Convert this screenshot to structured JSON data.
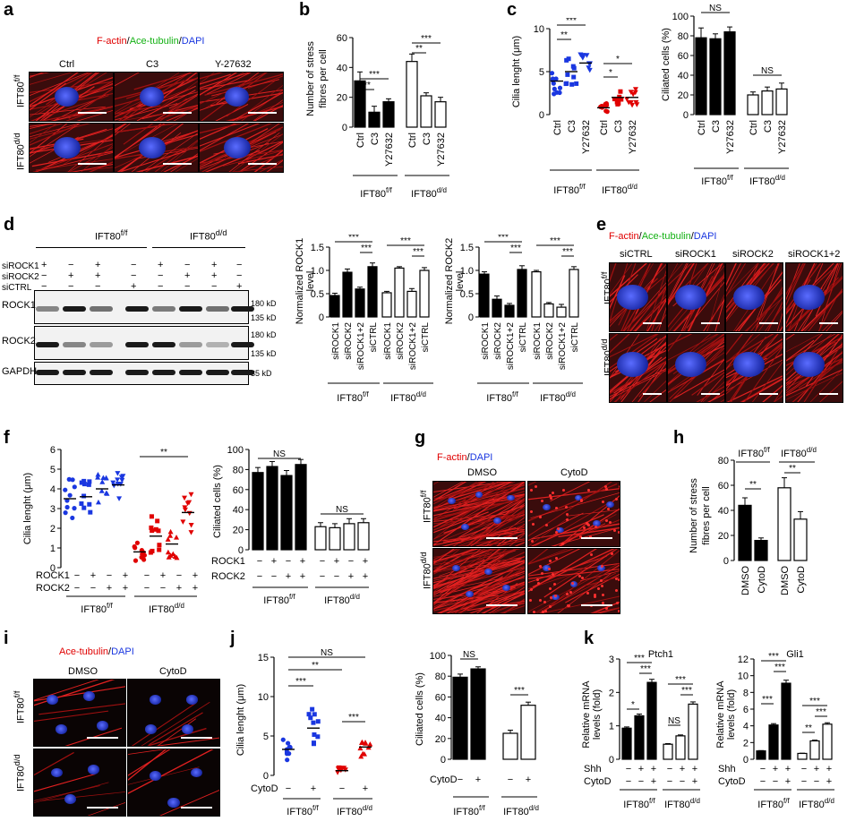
{
  "panels": {
    "a": {
      "letter": "a",
      "stain": {
        "part1": "F-actin",
        "sep1": "/",
        "part2": "Ace-tubulin",
        "sep2": "/",
        "part3": "DAPI"
      },
      "cols": [
        "Ctrl",
        "C3",
        "Y-27632"
      ],
      "row1": "IFT80",
      "row1_sup": "f/f",
      "row2": "IFT80",
      "row2_sup": "d/d"
    },
    "b": {
      "letter": "b",
      "ylabel1": "Number of stress",
      "ylabel2": "fibres per cell",
      "yticks": [
        "0",
        "20",
        "40",
        "60"
      ],
      "xticks": [
        "Ctrl",
        "C3",
        "Y27632",
        "Ctrl",
        "C3",
        "Y27632"
      ],
      "sig": [
        "**",
        "***",
        "**",
        "***"
      ],
      "g1": "IFT80",
      "g1_sup": "f/f",
      "g2": "IFT80",
      "g2_sup": "d/d"
    },
    "c": {
      "letter": "c",
      "ylabel": "Cilia lenght (μm)",
      "ylabel2": "Ciliated cells (%)",
      "yticks": [
        "0",
        "5",
        "10"
      ],
      "yticks2": [
        "0",
        "20",
        "40",
        "60",
        "80",
        "100"
      ],
      "xticks": [
        "Ctrl",
        "C3",
        "Y27632",
        "Ctrl",
        "C3",
        "Y27632"
      ],
      "sig": [
        "*",
        "**",
        "***",
        "*",
        "*"
      ],
      "sig2": [
        "NS",
        "NS"
      ],
      "g1": "IFT80",
      "g1_sup": "f/f",
      "g2": "IFT80",
      "g2_sup": "d/d"
    },
    "d": {
      "letter": "d",
      "g1": "IFT80",
      "g1_sup": "f/f",
      "g2": "IFT80",
      "g2_sup": "d/d",
      "rows": [
        "siROCK1",
        "siROCK2",
        "siCTRL"
      ],
      "signs": [
        [
          "+",
          "−",
          "+",
          "−",
          "+",
          "−",
          "+",
          "−"
        ],
        [
          "−",
          "+",
          "+",
          "−",
          "−",
          "+",
          "+",
          "−"
        ],
        [
          "−",
          "−",
          "−",
          "+",
          "−",
          "−",
          "−",
          "+"
        ]
      ],
      "bands": [
        "ROCK1",
        "ROCK2",
        "GAPDH"
      ],
      "mw": [
        "180 kD",
        "135 kD",
        "180 kD",
        "135 kD",
        "35 kD"
      ],
      "ylabel1": "Normalized ROCK1",
      "ylabel1b": "level",
      "ylabel2": "Normalized ROCK2",
      "ylabel2b": "level",
      "yticks": [
        "0",
        "0.5",
        "1.0",
        "1.5"
      ],
      "xticks": [
        "siROCK1",
        "siROCK2",
        "siROCK1+2",
        "siCTRL",
        "siROCK1",
        "siROCK2",
        "siROCK1+2",
        "siCTRL"
      ],
      "sig": "***"
    },
    "e": {
      "letter": "e",
      "stain": {
        "part1": "F-actin",
        "sep1": "/",
        "part2": "Ace-tubulin",
        "sep2": "/",
        "part3": "DAPI"
      },
      "cols": [
        "siCTRL",
        "siROCK1",
        "siROCK2",
        "siROCK1+2"
      ],
      "row1": "IFT80",
      "row1_sup": "f/f",
      "row2": "IFT80",
      "row2_sup": "d/d"
    },
    "f": {
      "letter": "f",
      "ylabel": "Cilia lenght (μm)",
      "ylabel2": "Ciliated cells (%)",
      "yticks": [
        "0",
        "1",
        "2",
        "3",
        "4",
        "5",
        "6"
      ],
      "yticks2": [
        "0",
        "20",
        "40",
        "60",
        "80",
        "100"
      ],
      "r1": "ROCK1",
      "r2": "ROCK2",
      "r1signs": [
        "−",
        "+",
        "−",
        "+",
        "−",
        "+",
        "−",
        "+"
      ],
      "r2signs": [
        "−",
        "−",
        "+",
        "+",
        "−",
        "−",
        "+",
        "+"
      ],
      "sig": "**",
      "sig2": [
        "NS",
        "NS"
      ],
      "g1": "IFT80",
      "g1_sup": "f/f",
      "g2": "IFT80",
      "g2_sup": "d/d"
    },
    "g": {
      "letter": "g",
      "stain": {
        "part1": "F-actin",
        "sep1": "/",
        "part2": "DAPI"
      },
      "cols": [
        "DMSO",
        "CytoD"
      ],
      "row1": "IFT80",
      "row1_sup": "f/f",
      "row2": "IFT80",
      "row2_sup": "d/d"
    },
    "h": {
      "letter": "h",
      "ylabel1": "Number of stress",
      "ylabel2": "fibres per cell",
      "yticks": [
        "0",
        "20",
        "40",
        "60",
        "80"
      ],
      "xticks": [
        "DMSO",
        "CytoD",
        "DMSO",
        "CytoD"
      ],
      "sig": [
        "**",
        "**"
      ],
      "g1": "IFT80",
      "g1_sup": "f/f",
      "g2": "IFT80",
      "g2_sup": "d/d"
    },
    "i": {
      "letter": "i",
      "stain": {
        "part1": "Ace-tubulin",
        "sep1": "/",
        "part2": "DAPI"
      },
      "cols": [
        "DMSO",
        "CytoD"
      ],
      "row1": "IFT80",
      "row1_sup": "f/f",
      "row2": "IFT80",
      "row2_sup": "d/d"
    },
    "j": {
      "letter": "j",
      "ylabel": "Cilia lenght (μm)",
      "ylabel2": "Ciliated cells (%)",
      "yticks": [
        "0",
        "5",
        "10",
        "15"
      ],
      "yticks2": [
        "0",
        "20",
        "40",
        "60",
        "80",
        "100"
      ],
      "cyto": "CytoD",
      "signs": [
        "−",
        "+",
        "−",
        "+"
      ],
      "sig": [
        "NS",
        "**",
        "***",
        "***"
      ],
      "sig2": [
        "NS",
        "***"
      ],
      "g1": "IFT80",
      "g1_sup": "f/f",
      "g2": "IFT80",
      "g2_sup": "d/d"
    },
    "k": {
      "letter": "k",
      "t1": "Ptch1",
      "t2": "Gli1",
      "ylabel1": "Relative mRNA",
      "ylabel2": "levels (fold)",
      "yticks1": [
        "0",
        "1",
        "2",
        "3"
      ],
      "yticks2": [
        "0",
        "2",
        "4",
        "6",
        "8",
        "10",
        "12"
      ],
      "shh": "Shh",
      "cyto": "CytoD",
      "shhsigns": [
        "−",
        "+",
        "+",
        "−",
        "+",
        "+"
      ],
      "cytosigns": [
        "−",
        "−",
        "+",
        "−",
        "−",
        "+"
      ],
      "sig1": [
        "***",
        "***",
        "*",
        "***",
        "***",
        "NS"
      ],
      "sig2": [
        "***",
        "***",
        "***",
        "***",
        "***",
        "**"
      ],
      "g1": "IFT80",
      "g1_sup": "f/f",
      "g2": "IFT80",
      "g2_sup": "d/d"
    }
  },
  "chart_data": [
    {
      "panel": "b",
      "type": "bar",
      "ylabel": "Number of stress fibres per cell",
      "ylim": [
        0,
        60
      ],
      "categories": [
        "Ctrl",
        "C3",
        "Y27632",
        "Ctrl",
        "C3",
        "Y27632"
      ],
      "series": [
        {
          "name": "IFT80 f/f",
          "values": [
            31,
            10,
            17,
            null,
            null,
            null
          ]
        },
        {
          "name": "IFT80 d/d",
          "values": [
            null,
            null,
            null,
            44,
            21,
            17
          ]
        }
      ]
    },
    {
      "panel": "c-left",
      "type": "scatter",
      "ylabel": "Cilia lenght (μm)",
      "ylim": [
        0,
        10
      ],
      "categories": [
        "Ctrl",
        "C3",
        "Y27632",
        "Ctrl",
        "C3",
        "Y27632"
      ],
      "means": [
        3.9,
        5.0,
        6.0,
        0.8,
        2.0,
        2.0
      ]
    },
    {
      "panel": "c-right",
      "type": "bar",
      "ylabel": "Ciliated cells (%)",
      "ylim": [
        0,
        100
      ],
      "categories": [
        "Ctrl",
        "C3",
        "Y27632",
        "Ctrl",
        "C3",
        "Y27632"
      ],
      "values": [
        78,
        77,
        84,
        20,
        24,
        26
      ]
    },
    {
      "panel": "d-ROCK1",
      "type": "bar",
      "ylabel": "Normalized ROCK1 level",
      "ylim": [
        0,
        1.5
      ],
      "categories": [
        "siROCK1",
        "siROCK2",
        "siROCK1+2",
        "siCTRL",
        "siROCK1",
        "siROCK2",
        "siROCK1+2",
        "siCTRL"
      ],
      "values": [
        0.46,
        0.96,
        0.6,
        1.08,
        0.52,
        1.05,
        0.55,
        1.0
      ]
    },
    {
      "panel": "d-ROCK2",
      "type": "bar",
      "ylabel": "Normalized ROCK2 level",
      "ylim": [
        0,
        1.5
      ],
      "categories": [
        "siROCK1",
        "siROCK2",
        "siROCK1+2",
        "siCTRL",
        "siROCK1",
        "siROCK2",
        "siROCK1+2",
        "siCTRL"
      ],
      "values": [
        0.92,
        0.38,
        0.25,
        1.02,
        0.97,
        0.28,
        0.21,
        1.02
      ]
    },
    {
      "panel": "f-left",
      "type": "scatter",
      "ylabel": "Cilia lenght (μm)",
      "ylim": [
        0,
        6
      ],
      "means": [
        3.5,
        3.6,
        4.0,
        4.2,
        0.8,
        1.6,
        1.2,
        2.8
      ]
    },
    {
      "panel": "f-right",
      "type": "bar",
      "ylabel": "Ciliated cells (%)",
      "ylim": [
        0,
        100
      ],
      "values": [
        77,
        83,
        74,
        85,
        23,
        22,
        26,
        27
      ]
    },
    {
      "panel": "h",
      "type": "bar",
      "ylabel": "Number of stress fibres per cell",
      "ylim": [
        0,
        80
      ],
      "categories": [
        "DMSO",
        "CytoD",
        "DMSO",
        "CytoD"
      ],
      "values": [
        44,
        16,
        58,
        33
      ]
    },
    {
      "panel": "j-left",
      "type": "scatter",
      "ylabel": "Cilia lenght (μm)",
      "ylim": [
        0,
        15
      ],
      "means": [
        3.3,
        6.0,
        0.6,
        3.6
      ]
    },
    {
      "panel": "j-right",
      "type": "bar",
      "ylabel": "Ciliated cells (%)",
      "ylim": [
        0,
        100
      ],
      "values": [
        79,
        87,
        25,
        52
      ]
    },
    {
      "panel": "k-Ptch1",
      "type": "bar",
      "ylabel": "Relative mRNA levels (fold)",
      "ylim": [
        0,
        3
      ],
      "values": [
        0.93,
        1.3,
        2.3,
        0.45,
        0.7,
        1.65
      ]
    },
    {
      "panel": "k-Gli1",
      "type": "bar",
      "ylabel": "Relative mRNA levels (fold)",
      "ylim": [
        0,
        12
      ],
      "values": [
        1.0,
        4.1,
        9.1,
        0.7,
        2.2,
        4.2
      ]
    }
  ],
  "colors": {
    "red": "#e00000",
    "green": "#13b113",
    "blue": "#1a37e0",
    "black": "#000000",
    "white": "#ffffff"
  }
}
